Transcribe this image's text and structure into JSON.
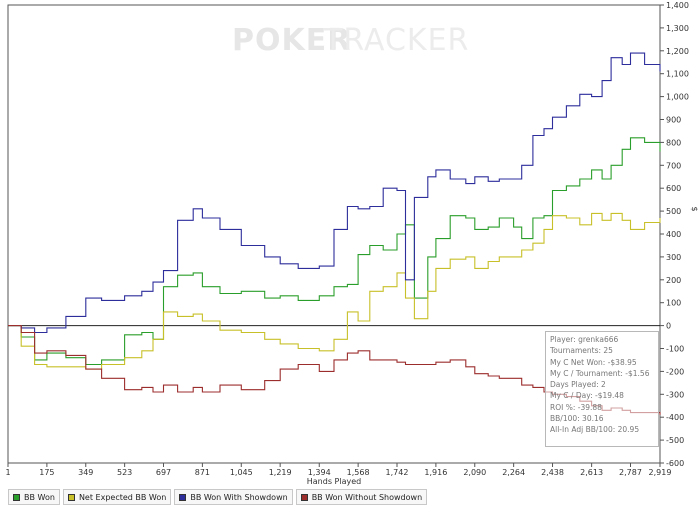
{
  "chart_data": {
    "type": "line",
    "title": "",
    "watermark_bold": "POKER",
    "watermark_light": "TRACKER",
    "xlabel": "Hands Played",
    "ylabel": "$",
    "xlim": [
      1,
      2919
    ],
    "ylim": [
      -600,
      1400
    ],
    "x_ticks": [
      1,
      175,
      349,
      523,
      697,
      871,
      1045,
      1219,
      1394,
      1568,
      1742,
      1916,
      2090,
      2264,
      2438,
      2613,
      2787,
      2919
    ],
    "x_tick_labels": [
      "1",
      "175",
      "349",
      "523",
      "697",
      "871",
      "1,045",
      "1,219",
      "1,394",
      "1,568",
      "1,742",
      "1,916",
      "2,090",
      "2,264",
      "2,438",
      "2,613",
      "2,787",
      "2,919"
    ],
    "y_ticks": [
      -600,
      -500,
      -400,
      -300,
      -200,
      -100,
      0,
      100,
      200,
      300,
      400,
      500,
      600,
      700,
      800,
      900,
      1000,
      1100,
      1200,
      1300,
      1400
    ],
    "y_tick_labels": [
      "-600",
      "-500",
      "-400",
      "-300",
      "-200",
      "-100",
      "0",
      "100",
      "200",
      "300",
      "400",
      "500",
      "600",
      "700",
      "800",
      "900",
      "1,000",
      "1,100",
      "1,200",
      "1,300",
      "1,400"
    ],
    "series": [
      {
        "name": "BB Won",
        "color": "#2a9e2a",
        "x": [
          1,
          60,
          120,
          175,
          260,
          349,
          420,
          523,
          600,
          650,
          697,
          760,
          830,
          871,
          950,
          1045,
          1150,
          1219,
          1300,
          1394,
          1460,
          1520,
          1568,
          1620,
          1680,
          1742,
          1780,
          1820,
          1880,
          1916,
          1980,
          2050,
          2090,
          2150,
          2200,
          2264,
          2300,
          2350,
          2400,
          2438,
          2500,
          2560,
          2613,
          2660,
          2700,
          2750,
          2787,
          2850,
          2919
        ],
        "y": [
          0,
          -50,
          -150,
          -120,
          -140,
          -170,
          -150,
          -40,
          -30,
          -60,
          170,
          220,
          230,
          170,
          140,
          150,
          120,
          130,
          110,
          130,
          170,
          180,
          310,
          350,
          330,
          400,
          440,
          120,
          300,
          380,
          480,
          470,
          420,
          430,
          470,
          430,
          380,
          470,
          480,
          590,
          610,
          640,
          680,
          640,
          700,
          770,
          820,
          800,
          760
        ]
      },
      {
        "name": "Net Expected BB Won",
        "color": "#c8c029",
        "x": [
          1,
          60,
          120,
          175,
          260,
          349,
          420,
          523,
          600,
          650,
          697,
          760,
          830,
          871,
          950,
          1045,
          1150,
          1219,
          1300,
          1394,
          1460,
          1520,
          1568,
          1620,
          1680,
          1742,
          1780,
          1820,
          1880,
          1916,
          1980,
          2050,
          2090,
          2150,
          2200,
          2264,
          2300,
          2350,
          2400,
          2438,
          2500,
          2560,
          2613,
          2660,
          2700,
          2750,
          2787,
          2850,
          2919
        ],
        "y": [
          0,
          -90,
          -170,
          -180,
          -180,
          -190,
          -170,
          -140,
          -110,
          -60,
          60,
          40,
          50,
          20,
          -20,
          -30,
          -60,
          -80,
          -100,
          -110,
          -60,
          60,
          20,
          150,
          170,
          230,
          120,
          30,
          150,
          250,
          290,
          300,
          250,
          280,
          300,
          300,
          330,
          360,
          420,
          480,
          470,
          440,
          490,
          460,
          490,
          460,
          420,
          450,
          470
        ]
      },
      {
        "name": "BB Won With Showdown",
        "color": "#2d2d9c",
        "x": [
          1,
          60,
          120,
          175,
          260,
          349,
          420,
          523,
          600,
          650,
          697,
          760,
          830,
          871,
          950,
          1045,
          1150,
          1219,
          1300,
          1394,
          1460,
          1520,
          1568,
          1620,
          1680,
          1742,
          1780,
          1820,
          1880,
          1916,
          1980,
          2050,
          2090,
          2150,
          2200,
          2264,
          2300,
          2350,
          2400,
          2438,
          2500,
          2560,
          2613,
          2660,
          2700,
          2750,
          2787,
          2850,
          2919
        ],
        "y": [
          0,
          -10,
          -30,
          -10,
          40,
          120,
          110,
          130,
          150,
          190,
          240,
          460,
          510,
          470,
          420,
          350,
          300,
          270,
          250,
          260,
          420,
          520,
          510,
          520,
          600,
          590,
          200,
          560,
          650,
          680,
          640,
          620,
          650,
          630,
          640,
          640,
          700,
          830,
          860,
          910,
          960,
          1010,
          1000,
          1070,
          1170,
          1140,
          1190,
          1140,
          1110
        ]
      },
      {
        "name": "BB Won Without Showdown",
        "color": "#9c2d2d",
        "x": [
          1,
          60,
          120,
          175,
          260,
          349,
          420,
          523,
          600,
          650,
          697,
          760,
          830,
          871,
          950,
          1045,
          1150,
          1219,
          1300,
          1394,
          1460,
          1520,
          1568,
          1620,
          1680,
          1742,
          1780,
          1820,
          1880,
          1916,
          1980,
          2050,
          2090,
          2150,
          2200,
          2264,
          2300,
          2350,
          2400,
          2438,
          2500,
          2560,
          2613,
          2660,
          2700,
          2750,
          2787,
          2850,
          2919
        ],
        "y": [
          0,
          -30,
          -120,
          -110,
          -130,
          -190,
          -230,
          -280,
          -270,
          -290,
          -260,
          -290,
          -270,
          -290,
          -260,
          -280,
          -240,
          -190,
          -170,
          -200,
          -150,
          -120,
          -110,
          -150,
          -150,
          -160,
          -170,
          -170,
          -170,
          -160,
          -150,
          -180,
          -210,
          -220,
          -230,
          -230,
          -260,
          -270,
          -290,
          -300,
          -310,
          -330,
          -350,
          -370,
          -360,
          -370,
          -380,
          -380,
          -390
        ]
      }
    ],
    "legend": [
      "BB Won",
      "Net Expected BB Won",
      "BB Won With Showdown",
      "BB Won Without Showdown"
    ],
    "legend_placement": "bottom",
    "grid": false
  },
  "stats": [
    "Player: grenka666",
    "Tournaments: 25",
    "My C Net Won: -$38.95",
    "My C / Tournament: -$1.56",
    "Days Played: 2",
    "My C / Day: -$19.48",
    "ROI %: -39.88",
    "BB/100: 30.16",
    "All-In Adj BB/100: 20.95"
  ]
}
